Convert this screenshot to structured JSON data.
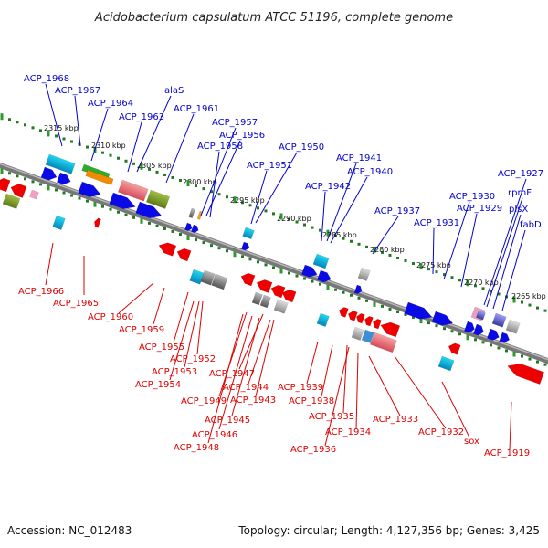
{
  "title": "Acidobacterium capsulatum ATCC 51196, complete genome",
  "footer": {
    "accession": "Accession: NC_012483",
    "summary": "Topology: circular; Length: 4,127,356 bp; Genes: 3,425"
  },
  "colors": {
    "plus_label": "#0000cc",
    "minus_label": "#dd0000",
    "backbone": "#777777",
    "tick_major": "#2a9a2a",
    "tick_minor": "#1f7a1f"
  },
  "scale_ticks": [
    "2315 kbp",
    "2310 kbp",
    "2305 kbp",
    "2300 kbp",
    "2295 kbp",
    "2290 kbp",
    "2285 kbp",
    "2280 kbp",
    "2275 kbp",
    "2270 kbp",
    "2265 kbp"
  ],
  "plus_labels": [
    "ACP_1968",
    "ACP_1967",
    "ACP_1964",
    "alaS",
    "ACP_1963",
    "ACP_1961",
    "ACP_1957",
    "ACP_1956",
    "ACP_1958",
    "ACP_1950",
    "ACP_1951",
    "ACP_1941",
    "ACP_1940",
    "ACP_1942",
    "ACP_1937",
    "ACP_1930",
    "ACP_1931",
    "ACP_1929",
    "ACP_1927",
    "rpmF",
    "plsX",
    "fabD"
  ],
  "minus_labels": [
    "ACP_1966",
    "ACP_1965",
    "ACP_1960",
    "ACP_1959",
    "ACP_1955",
    "ACP_1952",
    "ACP_1953",
    "ACP_1954",
    "ACP_1947",
    "ACP_1949",
    "ACP_1944",
    "ACP_1943",
    "ACP_1945",
    "ACP_1946",
    "ACP_1948",
    "ACP_1939",
    "ACP_1938",
    "ACP_1935",
    "ACP_1934",
    "ACP_1936",
    "ACP_1933",
    "ACP_1932",
    "sox",
    "ACP_1919"
  ]
}
